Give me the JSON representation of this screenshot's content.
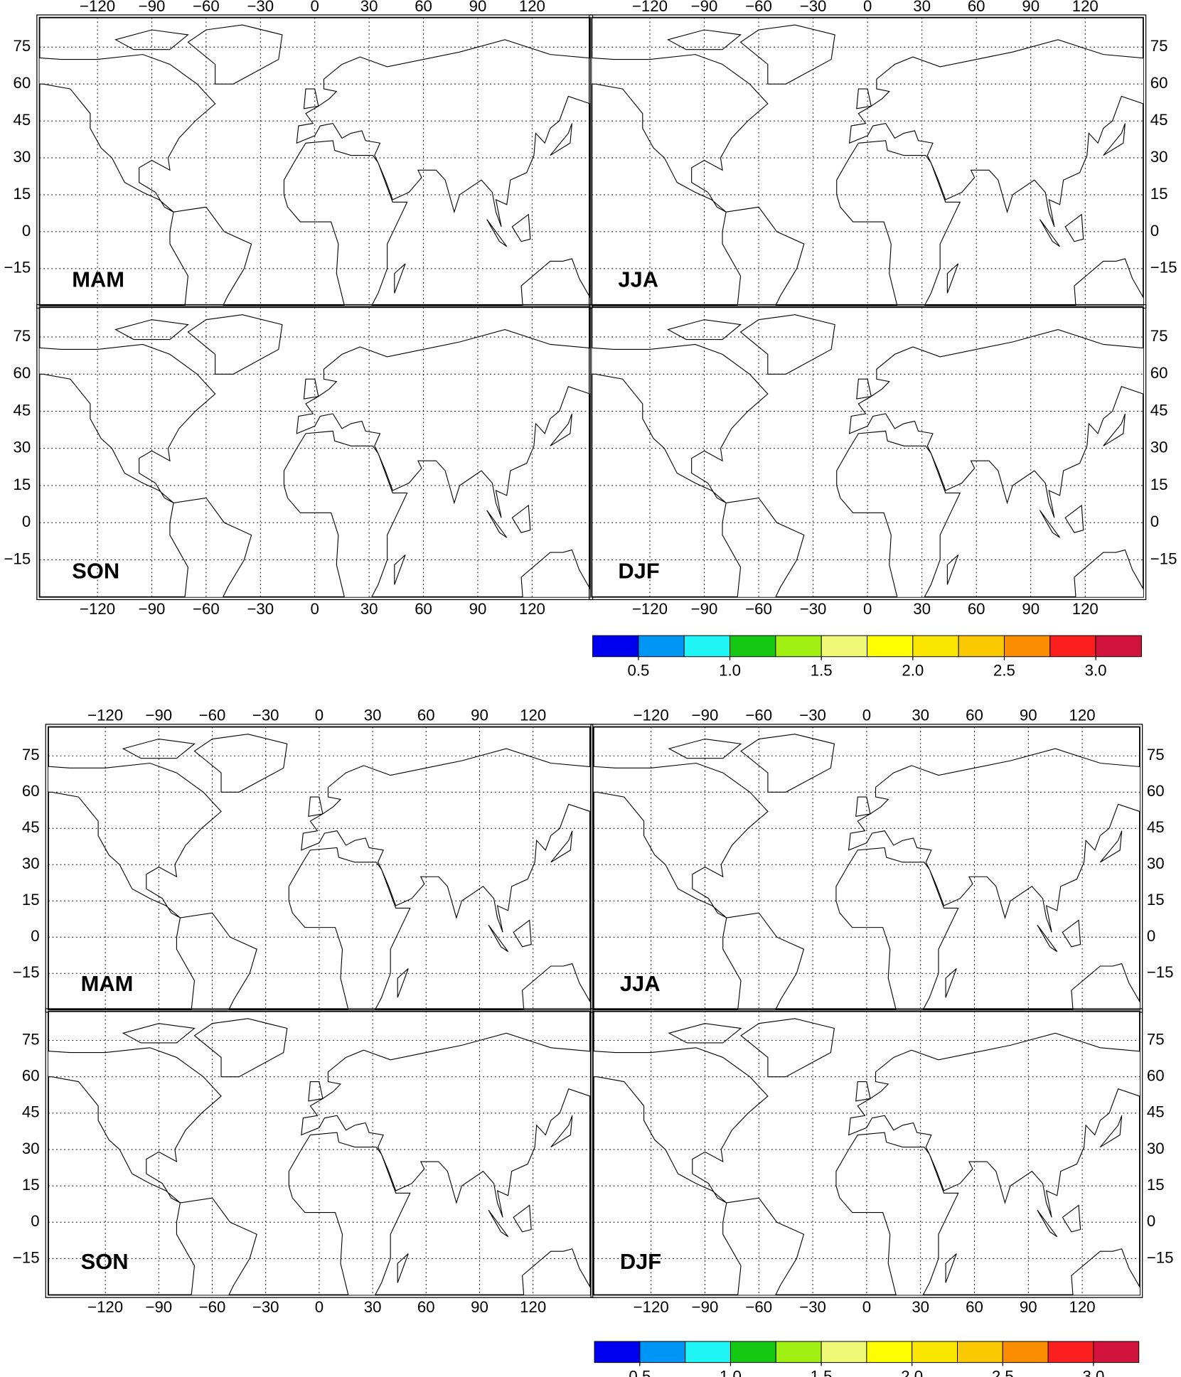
{
  "lon_ticks": [
    {
      "value": -120,
      "label": "−120"
    },
    {
      "value": -90,
      "label": "−90"
    },
    {
      "value": -60,
      "label": "−60"
    },
    {
      "value": -30,
      "label": "−30"
    },
    0,
    30,
    60,
    90,
    120
  ],
  "lat_ticks": [
    75,
    60,
    45,
    30,
    15,
    0,
    {
      "value": -15,
      "label": "−15"
    }
  ],
  "xlim": [
    -152,
    152
  ],
  "ylim": [
    -30,
    87
  ],
  "grid": true,
  "figures": [
    {
      "panels": [
        {
          "label": "MAM"
        },
        {
          "label": "JJA"
        },
        {
          "label": "SON"
        },
        {
          "label": "DJF"
        }
      ]
    },
    {
      "panels": [
        {
          "label": "MAM"
        },
        {
          "label": "JJA"
        },
        {
          "label": "SON"
        },
        {
          "label": "DJF"
        }
      ]
    }
  ],
  "colorbar": {
    "limits": [
      0.25,
      3.25
    ],
    "colors": [
      "#0000f0",
      "#0096f5",
      "#20f5f5",
      "#14c814",
      "#a0f014",
      "#f0f878",
      "#ffff00",
      "#fae600",
      "#fac800",
      "#fa8c00",
      "#fa1e1e",
      "#d2143c"
    ],
    "ticks": [
      0.5,
      {
        "value": 1,
        "label": "1.0"
      },
      1.5,
      {
        "value": 2,
        "label": "2.0"
      },
      2.5,
      {
        "value": 3,
        "label": "3.0"
      }
    ]
  }
}
